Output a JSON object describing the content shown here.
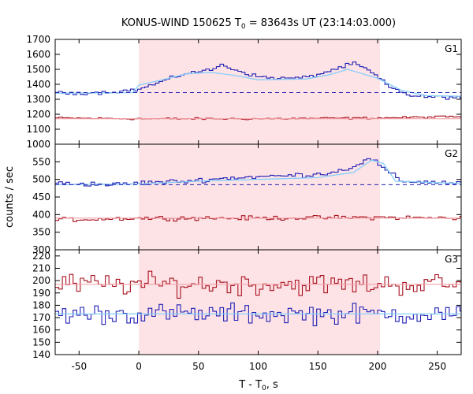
{
  "chart_data": {
    "type": "line",
    "title": "KONUS-WIND 150625 T0 = 83643s UT (23:14:03.000)",
    "title_parts": {
      "before": "KONUS-WIND 150625 T",
      "sub": "0",
      "after": " = 83643s UT (23:14:03.000)"
    },
    "xlabel_parts": {
      "before": "T - T",
      "sub": "0",
      "after": ", s"
    },
    "ylabel": "counts / sec",
    "xlim": [
      -70,
      270
    ],
    "x_ticks": [
      -50,
      0,
      50,
      100,
      150,
      200,
      250
    ],
    "highlight_interval": [
      0,
      202
    ],
    "colors": {
      "blue": "#1f1fb4",
      "red": "#a8101e",
      "fit": "#87cefa",
      "red_fit": "#f4a3a8",
      "shade": "#fde3e6"
    },
    "panels": [
      {
        "label": "G1",
        "ylim": [
          1000,
          1700
        ],
        "y_ticks": [
          1000,
          1100,
          1200,
          1300,
          1400,
          1500,
          1600,
          1700
        ],
        "background_level": 1345,
        "red_level": 1170,
        "blue_series": {
          "x": [
            -70,
            -30,
            0,
            20,
            40,
            60,
            70,
            80,
            100,
            120,
            140,
            150,
            160,
            170,
            180,
            190,
            200,
            210,
            230,
            270
          ],
          "y": [
            1340,
            1345,
            1365,
            1420,
            1475,
            1495,
            1530,
            1500,
            1450,
            1440,
            1445,
            1465,
            1490,
            1515,
            1540,
            1505,
            1450,
            1380,
            1320,
            1310
          ]
        },
        "blue_fit": {
          "x": [
            -70,
            -5,
            0,
            20,
            40,
            60,
            80,
            100,
            140,
            160,
            175,
            200,
            220,
            240,
            270
          ],
          "y": [
            1340,
            1345,
            1395,
            1430,
            1470,
            1480,
            1460,
            1430,
            1435,
            1465,
            1500,
            1440,
            1360,
            1325,
            1320
          ]
        },
        "red_series": {
          "x": [
            -70,
            0,
            100,
            200,
            270
          ],
          "y": [
            1175,
            1170,
            1170,
            1175,
            1185
          ]
        }
      },
      {
        "label": "G2",
        "ylim": [
          300,
          600
        ],
        "y_ticks": [
          300,
          350,
          400,
          450,
          500,
          550
        ],
        "background_level": 485,
        "red_level": 390,
        "blue_series": {
          "x": [
            -70,
            -20,
            0,
            40,
            80,
            120,
            150,
            170,
            185,
            195,
            205,
            220,
            270
          ],
          "y": [
            490,
            485,
            490,
            495,
            505,
            510,
            515,
            525,
            545,
            560,
            530,
            495,
            490
          ]
        },
        "blue_fit": {
          "x": [
            -70,
            0,
            50,
            100,
            150,
            180,
            195,
            205,
            215,
            270
          ],
          "y": [
            485,
            487,
            495,
            500,
            505,
            520,
            555,
            545,
            495,
            488
          ]
        },
        "red_series": {
          "x": [
            -70,
            0,
            100,
            200,
            270
          ],
          "y": [
            385,
            390,
            390,
            392,
            390
          ]
        }
      },
      {
        "label": "G3",
        "ylim": [
          140,
          225
        ],
        "y_ticks": [
          140,
          150,
          160,
          170,
          180,
          190,
          200,
          210,
          220
        ],
        "red_level": 197,
        "blue_level": 173,
        "blue_series": {
          "x": [
            -70,
            0,
            100,
            200,
            270
          ],
          "y": [
            173,
            173,
            173,
            173,
            173
          ]
        },
        "red_series": {
          "x": [
            -70,
            0,
            100,
            200,
            270
          ],
          "y": [
            197,
            197,
            197,
            197,
            197
          ]
        }
      }
    ]
  }
}
